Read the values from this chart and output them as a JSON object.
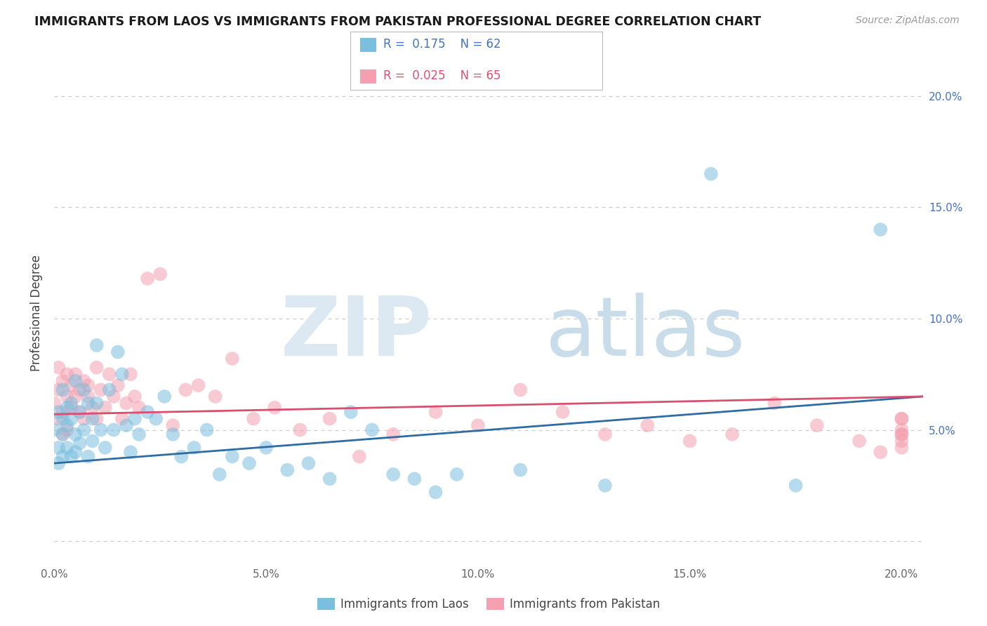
{
  "title": "IMMIGRANTS FROM LAOS VS IMMIGRANTS FROM PAKISTAN PROFESSIONAL DEGREE CORRELATION CHART",
  "source": "Source: ZipAtlas.com",
  "ylabel": "Professional Degree",
  "xlim": [
    0.0,
    0.205
  ],
  "ylim": [
    -0.01,
    0.215
  ],
  "color_laos": "#7bbfde",
  "color_pakistan": "#f4a0b0",
  "color_line_laos": "#2e6da4",
  "color_line_pakistan": "#d94f6e",
  "legend_color_laos": "#4472c4",
  "legend_color_pakistan": "#e05070",
  "laos_x": [
    0.0,
    0.001,
    0.001,
    0.001,
    0.002,
    0.002,
    0.002,
    0.002,
    0.003,
    0.003,
    0.003,
    0.004,
    0.004,
    0.004,
    0.005,
    0.005,
    0.005,
    0.006,
    0.006,
    0.007,
    0.007,
    0.008,
    0.008,
    0.009,
    0.009,
    0.01,
    0.01,
    0.011,
    0.012,
    0.013,
    0.014,
    0.015,
    0.016,
    0.017,
    0.018,
    0.019,
    0.02,
    0.022,
    0.024,
    0.026,
    0.028,
    0.03,
    0.033,
    0.036,
    0.039,
    0.042,
    0.046,
    0.05,
    0.055,
    0.06,
    0.065,
    0.07,
    0.075,
    0.08,
    0.085,
    0.09,
    0.095,
    0.11,
    0.13,
    0.155,
    0.175,
    0.195
  ],
  "laos_y": [
    0.05,
    0.042,
    0.058,
    0.035,
    0.068,
    0.048,
    0.055,
    0.038,
    0.06,
    0.042,
    0.052,
    0.055,
    0.062,
    0.038,
    0.048,
    0.072,
    0.04,
    0.058,
    0.044,
    0.068,
    0.05,
    0.062,
    0.038,
    0.055,
    0.045,
    0.088,
    0.062,
    0.05,
    0.042,
    0.068,
    0.05,
    0.085,
    0.075,
    0.052,
    0.04,
    0.055,
    0.048,
    0.058,
    0.055,
    0.065,
    0.048,
    0.038,
    0.042,
    0.05,
    0.03,
    0.038,
    0.035,
    0.042,
    0.032,
    0.035,
    0.028,
    0.058,
    0.05,
    0.03,
    0.028,
    0.022,
    0.03,
    0.032,
    0.025,
    0.165,
    0.025,
    0.14
  ],
  "pakistan_x": [
    0.0,
    0.001,
    0.001,
    0.001,
    0.002,
    0.002,
    0.002,
    0.003,
    0.003,
    0.003,
    0.004,
    0.004,
    0.005,
    0.005,
    0.006,
    0.006,
    0.007,
    0.007,
    0.008,
    0.008,
    0.009,
    0.01,
    0.01,
    0.011,
    0.012,
    0.013,
    0.014,
    0.015,
    0.016,
    0.017,
    0.018,
    0.019,
    0.02,
    0.022,
    0.025,
    0.028,
    0.031,
    0.034,
    0.038,
    0.042,
    0.047,
    0.052,
    0.058,
    0.065,
    0.072,
    0.08,
    0.09,
    0.1,
    0.11,
    0.12,
    0.13,
    0.14,
    0.15,
    0.16,
    0.17,
    0.18,
    0.19,
    0.195,
    0.2,
    0.2,
    0.2,
    0.2,
    0.2,
    0.2,
    0.2
  ],
  "pakistan_y": [
    0.062,
    0.068,
    0.055,
    0.078,
    0.058,
    0.072,
    0.048,
    0.065,
    0.075,
    0.05,
    0.07,
    0.06,
    0.065,
    0.075,
    0.058,
    0.068,
    0.072,
    0.055,
    0.065,
    0.07,
    0.06,
    0.078,
    0.055,
    0.068,
    0.06,
    0.075,
    0.065,
    0.07,
    0.055,
    0.062,
    0.075,
    0.065,
    0.06,
    0.118,
    0.12,
    0.052,
    0.068,
    0.07,
    0.065,
    0.082,
    0.055,
    0.06,
    0.05,
    0.055,
    0.038,
    0.048,
    0.058,
    0.052,
    0.068,
    0.058,
    0.048,
    0.052,
    0.045,
    0.048,
    0.062,
    0.052,
    0.045,
    0.04,
    0.05,
    0.055,
    0.048,
    0.042,
    0.045,
    0.048,
    0.055
  ],
  "laos_line_x0": 0.0,
  "laos_line_x1": 0.205,
  "laos_line_y0": 0.035,
  "laos_line_y1": 0.065,
  "pak_line_x0": 0.0,
  "pak_line_x1": 0.205,
  "pak_line_y0": 0.057,
  "pak_line_y1": 0.065,
  "grid_color": "#cccccc",
  "grid_linestyle": "--",
  "tick_color_right": "#4472c4",
  "watermark_zip_color": "#dce8f2",
  "watermark_atlas_color": "#c8dcea"
}
